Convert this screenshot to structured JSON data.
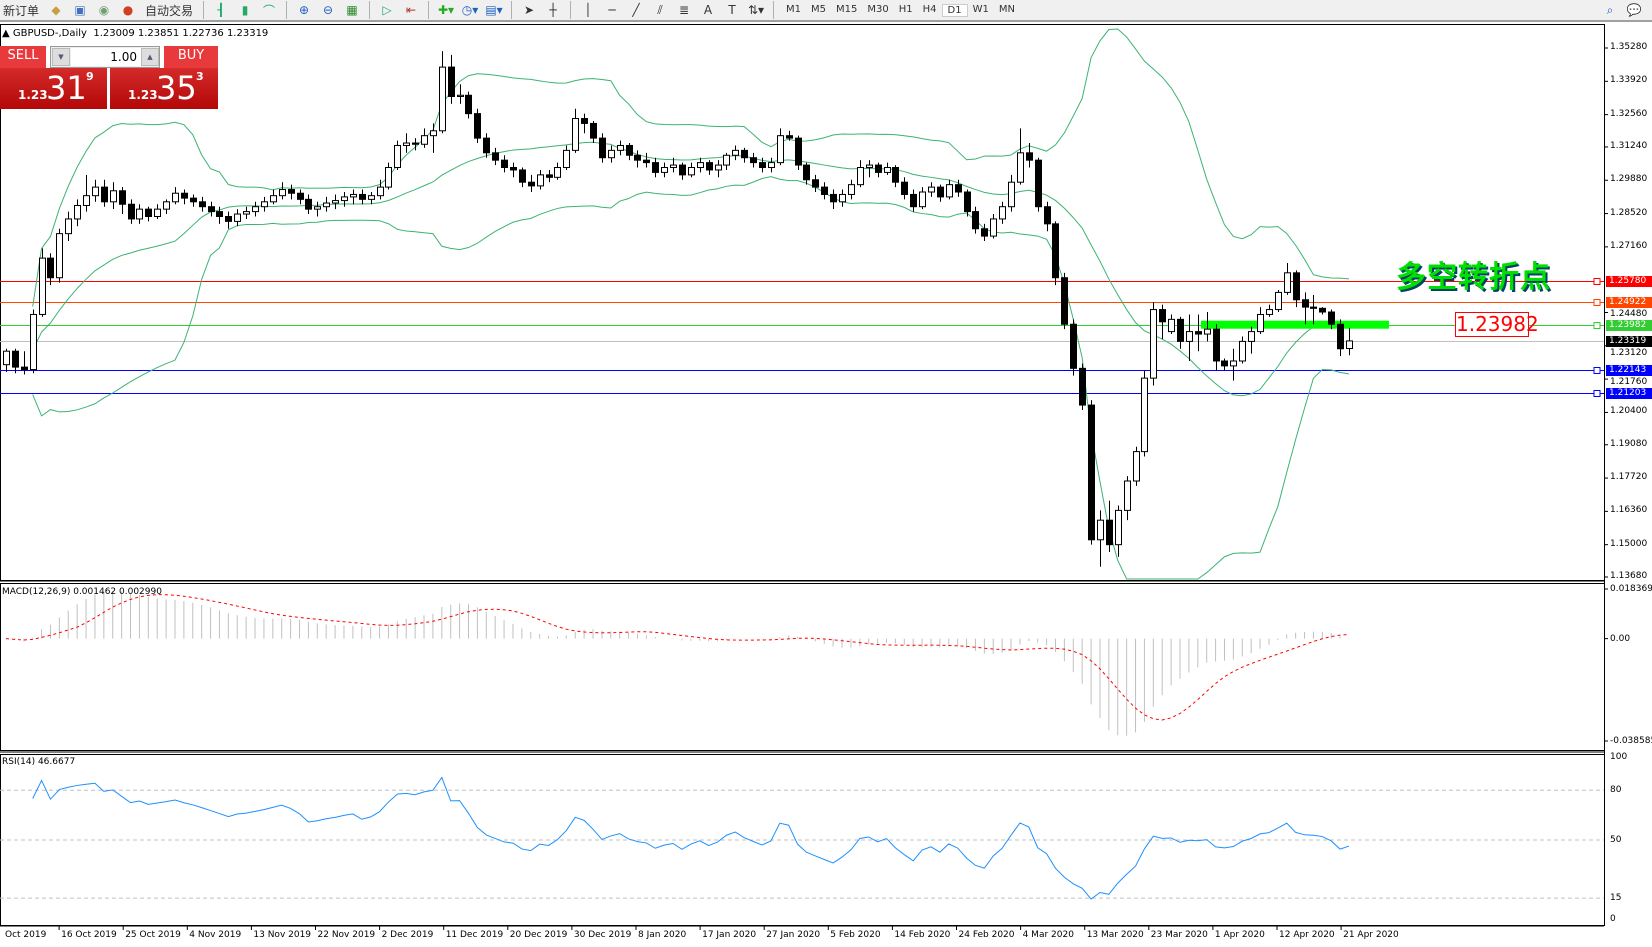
{
  "toolbar": {
    "new_order": "新订单",
    "auto_trade": "自动交易",
    "timeframes": [
      "M1",
      "M5",
      "M15",
      "M30",
      "H1",
      "H4",
      "D1",
      "W1",
      "MN"
    ],
    "active_timeframe": "D1",
    "icons": [
      "folder-icon",
      "market-watch-icon",
      "signal-icon",
      "auto-trade-icon",
      "bar-chart-icon",
      "candlestick-icon",
      "line-chart-icon",
      "zoom-in-icon",
      "zoom-out-icon",
      "tile-windows-icon",
      "autoscroll-icon",
      "chart-shift-icon",
      "indicators-icon",
      "periods-icon",
      "templates-icon",
      "cursor-icon",
      "crosshair-icon",
      "vertical-line-icon",
      "horizontal-line-icon",
      "trendline-icon",
      "equidistant-channel-icon",
      "fibonacci-icon",
      "text-icon",
      "text-label-icon",
      "arrows-icon",
      "search-icon",
      "chat-icon"
    ]
  },
  "header": {
    "symbol": "GBPUSD-,Daily",
    "ohlc": "1.23009 1.23851 1.22736 1.23319"
  },
  "trade_panel": {
    "sell_label": "SELL",
    "buy_label": "BUY",
    "lot": "1.00",
    "sell_price": {
      "small": "1.23",
      "big": "31",
      "sup": "9"
    },
    "buy_price": {
      "small": "1.23",
      "big": "35",
      "sup": "3"
    }
  },
  "annotation": {
    "text": "多空转折点",
    "level_label": "1.23982"
  },
  "colors": {
    "bull": "#ffffff",
    "bear": "#000000",
    "bands": "#3cb371",
    "macd_hist": "#c0c0c0",
    "macd_signal": "#ff0000",
    "rsi": "#1e90ff"
  },
  "chart_data": [
    {
      "type": "candlestick",
      "title": "GBPUSD-,Daily",
      "ylim": [
        1.1368,
        1.3528
      ],
      "price_ticks": [
        "1.35280",
        "1.33920",
        "1.32560",
        "1.31240",
        "1.29880",
        "1.28520",
        "1.27160",
        "1.24480",
        "1.23120",
        "1.21760",
        "1.20400",
        "1.19080",
        "1.17720",
        "1.16360",
        "1.15000",
        "1.13680"
      ],
      "x_labels": [
        "Oct 2019",
        "16 Oct 2019",
        "25 Oct 2019",
        "4 Nov 2019",
        "13 Nov 2019",
        "22 Nov 2019",
        "2 Dec 2019",
        "11 Dec 2019",
        "20 Dec 2019",
        "30 Dec 2019",
        "8 Jan 2020",
        "17 Jan 2020",
        "27 Jan 2020",
        "5 Feb 2020",
        "14 Feb 2020",
        "24 Feb 2020",
        "4 Mar 2020",
        "13 Mar 2020",
        "23 Mar 2020",
        "1 Apr 2020",
        "12 Apr 2020",
        "21 Apr 2020"
      ],
      "overlay": "Bollinger Bands",
      "hlines": [
        {
          "value": "1.25780",
          "color": "#ff0000"
        },
        {
          "value": "1.24922",
          "color": "#ff4500"
        },
        {
          "value": "1.23982",
          "color": "#32cd32"
        },
        {
          "value": "1.23319",
          "color": "#c0c0c0",
          "tag": "#000000"
        },
        {
          "value": "1.22143",
          "color": "#0000ff"
        },
        {
          "value": "1.21203",
          "color": "#0000ff"
        }
      ],
      "candles": [
        [
          1.2235,
          1.23,
          1.2205,
          1.229
        ],
        [
          1.229,
          1.23,
          1.22,
          1.2225
        ],
        [
          1.2225,
          1.229,
          1.2195,
          1.2215
        ],
        [
          1.2215,
          1.246,
          1.22,
          1.244
        ],
        [
          1.244,
          1.271,
          1.243,
          1.267
        ],
        [
          1.267,
          1.269,
          1.256,
          1.259
        ],
        [
          1.259,
          1.279,
          1.257,
          1.277
        ],
        [
          1.277,
          1.286,
          1.274,
          1.283
        ],
        [
          1.283,
          1.291,
          1.28,
          1.2885
        ],
        [
          1.2885,
          1.301,
          1.286,
          1.2925
        ],
        [
          1.2925,
          1.299,
          1.29,
          1.296
        ],
        [
          1.296,
          1.299,
          1.288,
          1.29
        ],
        [
          1.29,
          1.298,
          1.287,
          1.2945
        ],
        [
          1.2945,
          1.296,
          1.285,
          1.289
        ],
        [
          1.289,
          1.291,
          1.281,
          1.283
        ],
        [
          1.283,
          1.289,
          1.281,
          1.287
        ],
        [
          1.287,
          1.288,
          1.282,
          1.284
        ],
        [
          1.284,
          1.289,
          1.283,
          1.287
        ],
        [
          1.287,
          1.291,
          1.285,
          1.29
        ],
        [
          1.29,
          1.296,
          1.289,
          1.2935
        ],
        [
          1.2935,
          1.295,
          1.289,
          1.2915
        ],
        [
          1.2915,
          1.293,
          1.288,
          1.29
        ],
        [
          1.29,
          1.292,
          1.286,
          1.288
        ],
        [
          1.288,
          1.29,
          1.284,
          1.286
        ],
        [
          1.286,
          1.288,
          1.281,
          1.284
        ],
        [
          1.284,
          1.286,
          1.279,
          1.282
        ],
        [
          1.282,
          1.287,
          1.28,
          1.285
        ],
        [
          1.285,
          1.288,
          1.283,
          1.286
        ],
        [
          1.286,
          1.29,
          1.284,
          1.288
        ],
        [
          1.288,
          1.292,
          1.286,
          1.29
        ],
        [
          1.29,
          1.295,
          1.289,
          1.2925
        ],
        [
          1.2925,
          1.298,
          1.291,
          1.295
        ],
        [
          1.295,
          1.297,
          1.291,
          1.2935
        ],
        [
          1.2935,
          1.295,
          1.289,
          1.291
        ],
        [
          1.291,
          1.293,
          1.285,
          1.287
        ],
        [
          1.287,
          1.29,
          1.284,
          1.288
        ],
        [
          1.288,
          1.292,
          1.286,
          1.2895
        ],
        [
          1.2895,
          1.293,
          1.287,
          1.2905
        ],
        [
          1.2905,
          1.294,
          1.288,
          1.292
        ],
        [
          1.292,
          1.295,
          1.289,
          1.293
        ],
        [
          1.293,
          1.295,
          1.289,
          1.291
        ],
        [
          1.291,
          1.294,
          1.289,
          1.2925
        ],
        [
          1.2925,
          1.299,
          1.291,
          1.296
        ],
        [
          1.296,
          1.306,
          1.295,
          1.304
        ],
        [
          1.304,
          1.315,
          1.303,
          1.313
        ],
        [
          1.313,
          1.318,
          1.31,
          1.314
        ],
        [
          1.314,
          1.316,
          1.311,
          1.3135
        ],
        [
          1.3135,
          1.32,
          1.312,
          1.317
        ],
        [
          1.317,
          1.322,
          1.31,
          1.319
        ],
        [
          1.319,
          1.3515,
          1.318,
          1.345
        ],
        [
          1.345,
          1.35,
          1.33,
          1.333
        ],
        [
          1.333,
          1.338,
          1.33,
          1.3335
        ],
        [
          1.3335,
          1.335,
          1.324,
          1.326
        ],
        [
          1.326,
          1.328,
          1.314,
          1.316
        ],
        [
          1.316,
          1.318,
          1.308,
          1.31
        ],
        [
          1.31,
          1.312,
          1.305,
          1.307
        ],
        [
          1.307,
          1.309,
          1.302,
          1.304
        ],
        [
          1.304,
          1.306,
          1.3,
          1.303
        ],
        [
          1.303,
          1.304,
          1.296,
          1.298
        ],
        [
          1.298,
          1.301,
          1.294,
          1.2965
        ],
        [
          1.2965,
          1.303,
          1.295,
          1.301
        ],
        [
          1.301,
          1.303,
          1.298,
          1.3
        ],
        [
          1.3,
          1.306,
          1.299,
          1.304
        ],
        [
          1.304,
          1.313,
          1.303,
          1.311
        ],
        [
          1.311,
          1.328,
          1.31,
          1.324
        ],
        [
          1.324,
          1.326,
          1.318,
          1.322
        ],
        [
          1.322,
          1.323,
          1.314,
          1.316
        ],
        [
          1.316,
          1.318,
          1.306,
          1.308
        ],
        [
          1.308,
          1.313,
          1.306,
          1.311
        ],
        [
          1.311,
          1.315,
          1.309,
          1.313
        ],
        [
          1.313,
          1.314,
          1.307,
          1.309
        ],
        [
          1.309,
          1.311,
          1.304,
          1.307
        ],
        [
          1.307,
          1.31,
          1.304,
          1.306
        ],
        [
          1.306,
          1.308,
          1.3,
          1.302
        ],
        [
          1.302,
          1.306,
          1.3,
          1.304
        ],
        [
          1.304,
          1.308,
          1.302,
          1.305
        ],
        [
          1.305,
          1.306,
          1.299,
          1.301
        ],
        [
          1.301,
          1.306,
          1.3,
          1.304
        ],
        [
          1.304,
          1.308,
          1.302,
          1.306
        ],
        [
          1.306,
          1.307,
          1.301,
          1.303
        ],
        [
          1.303,
          1.307,
          1.3,
          1.305
        ],
        [
          1.305,
          1.31,
          1.303,
          1.309
        ],
        [
          1.309,
          1.313,
          1.307,
          1.311
        ],
        [
          1.311,
          1.312,
          1.306,
          1.308
        ],
        [
          1.308,
          1.31,
          1.304,
          1.306
        ],
        [
          1.306,
          1.308,
          1.302,
          1.304
        ],
        [
          1.304,
          1.308,
          1.302,
          1.306
        ],
        [
          1.306,
          1.32,
          1.305,
          1.317
        ],
        [
          1.317,
          1.319,
          1.315,
          1.316
        ],
        [
          1.316,
          1.317,
          1.303,
          1.305
        ],
        [
          1.305,
          1.306,
          1.297,
          1.299
        ],
        [
          1.299,
          1.301,
          1.294,
          1.296
        ],
        [
          1.296,
          1.298,
          1.291,
          1.293
        ],
        [
          1.293,
          1.295,
          1.287,
          1.29
        ],
        [
          1.29,
          1.295,
          1.288,
          1.293
        ],
        [
          1.293,
          1.299,
          1.291,
          1.297
        ],
        [
          1.297,
          1.307,
          1.296,
          1.304
        ],
        [
          1.304,
          1.307,
          1.3,
          1.305
        ],
        [
          1.305,
          1.306,
          1.3,
          1.302
        ],
        [
          1.302,
          1.306,
          1.301,
          1.304
        ],
        [
          1.304,
          1.305,
          1.296,
          1.298
        ],
        [
          1.298,
          1.3,
          1.291,
          1.293
        ],
        [
          1.293,
          1.295,
          1.286,
          1.288
        ],
        [
          1.288,
          1.296,
          1.287,
          1.294
        ],
        [
          1.294,
          1.298,
          1.292,
          1.296
        ],
        [
          1.296,
          1.297,
          1.29,
          1.292
        ],
        [
          1.292,
          1.299,
          1.291,
          1.297
        ],
        [
          1.297,
          1.299,
          1.292,
          1.294
        ],
        [
          1.294,
          1.295,
          1.284,
          1.286
        ],
        [
          1.286,
          1.288,
          1.277,
          1.279
        ],
        [
          1.279,
          1.281,
          1.274,
          1.276
        ],
        [
          1.276,
          1.285,
          1.275,
          1.283
        ],
        [
          1.283,
          1.29,
          1.281,
          1.288
        ],
        [
          1.288,
          1.301,
          1.286,
          1.298
        ],
        [
          1.298,
          1.32,
          1.297,
          1.31
        ],
        [
          1.31,
          1.314,
          1.304,
          1.307
        ],
        [
          1.307,
          1.308,
          1.286,
          1.288
        ],
        [
          1.288,
          1.29,
          1.278,
          1.281
        ],
        [
          1.281,
          1.282,
          1.256,
          1.259
        ],
        [
          1.259,
          1.261,
          1.238,
          1.24
        ],
        [
          1.24,
          1.242,
          1.219,
          1.222
        ],
        [
          1.222,
          1.224,
          1.205,
          1.207
        ],
        [
          1.207,
          1.209,
          1.15,
          1.152
        ],
        [
          1.152,
          1.164,
          1.141,
          1.16
        ],
        [
          1.16,
          1.168,
          1.147,
          1.15
        ],
        [
          1.15,
          1.166,
          1.145,
          1.164
        ],
        [
          1.164,
          1.178,
          1.16,
          1.176
        ],
        [
          1.176,
          1.19,
          1.174,
          1.188
        ],
        [
          1.188,
          1.221,
          1.186,
          1.218
        ],
        [
          1.218,
          1.249,
          1.215,
          1.246
        ],
        [
          1.246,
          1.248,
          1.234,
          1.241
        ],
        [
          1.237,
          1.244,
          1.236,
          1.242
        ],
        [
          1.242,
          1.243,
          1.23,
          1.233
        ],
        [
          1.233,
          1.244,
          1.225,
          1.237
        ],
        [
          1.237,
          1.244,
          1.229,
          1.236
        ],
        [
          1.236,
          1.245,
          1.233,
          1.238
        ],
        [
          1.238,
          1.24,
          1.221,
          1.225
        ],
        [
          1.225,
          1.226,
          1.221,
          1.223
        ],
        [
          1.223,
          1.23,
          1.217,
          1.225
        ],
        [
          1.225,
          1.235,
          1.224,
          1.233
        ],
        [
          1.233,
          1.239,
          1.228,
          1.237
        ],
        [
          1.237,
          1.247,
          1.236,
          1.244
        ],
        [
          1.244,
          1.248,
          1.243,
          1.246
        ],
        [
          1.246,
          1.254,
          1.245,
          1.253
        ],
        [
          1.253,
          1.265,
          1.252,
          1.261
        ],
        [
          1.261,
          1.262,
          1.247,
          1.25
        ],
        [
          1.25,
          1.253,
          1.24,
          1.247
        ],
        [
          1.247,
          1.252,
          1.24,
          1.2465
        ],
        [
          1.2465,
          1.247,
          1.244,
          1.245
        ],
        [
          1.245,
          1.246,
          1.238,
          1.24
        ],
        [
          1.24,
          1.242,
          1.227,
          1.23
        ],
        [
          1.23009,
          1.23851,
          1.22736,
          1.23319
        ]
      ]
    },
    {
      "type": "bar+line",
      "title": "MACD(12,26,9) 0.001462 0.002990",
      "ylim": [
        -0.038585,
        0.018369
      ],
      "ticks": [
        "0.018369",
        "0.00",
        "-0.038585"
      ]
    },
    {
      "type": "line",
      "title": "RSI(14) 46.6677",
      "ylim": [
        0,
        100
      ],
      "ticks": [
        "100",
        "80",
        "50",
        "15",
        "0"
      ],
      "levels": [
        80,
        50,
        15
      ]
    }
  ]
}
